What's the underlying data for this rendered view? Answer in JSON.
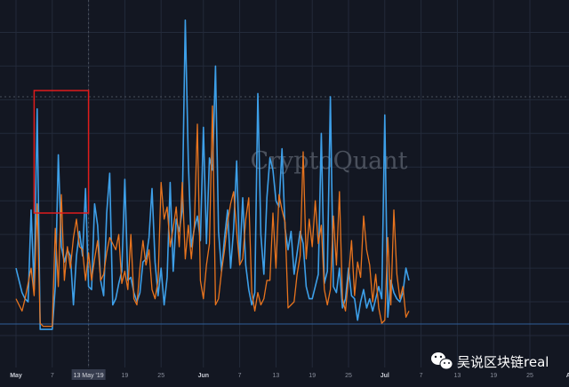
{
  "chart_data": {
    "type": "line",
    "watermark": "CryptoQuant",
    "credit": "吴说区块链real",
    "credit_icon": "wechat-icon",
    "crosshair_label": "13 May '19",
    "x_ticks": [
      "May",
      "7",
      "13 May '19",
      "19",
      "25",
      "Jun",
      "7",
      "13",
      "19",
      "25",
      "Jul",
      "7",
      "13",
      "19",
      "25",
      "Aug"
    ],
    "x_tick_days": [
      0,
      6,
      12,
      18,
      24,
      31,
      37,
      43,
      49,
      55,
      61,
      67,
      73,
      79,
      85,
      92
    ],
    "bold_ticks": [
      "May",
      "Jun",
      "Jul",
      "Aug"
    ],
    "ylim": [
      0,
      100
    ],
    "grid": true,
    "colors": {
      "background": "#131722",
      "grid": "#232a3a",
      "blue_series": "#3d9fe8",
      "orange_series": "#e8741e",
      "highlight_box": "#e01c1c",
      "baseline": "#2f5f9a"
    },
    "highlight": {
      "x_start": 3,
      "x_end": 12,
      "y_low": 40,
      "y_high": 80
    },
    "series": [
      {
        "color": "#3d9fe8",
        "values": [
          22,
          18,
          14,
          12,
          11,
          41,
          15,
          74,
          2,
          2,
          2,
          2,
          2,
          16,
          59,
          29,
          24,
          28,
          26,
          10,
          26,
          34,
          26,
          48,
          16,
          15,
          43,
          36,
          18,
          13,
          40,
          53,
          10,
          12,
          17,
          21,
          51,
          18,
          19,
          14,
          11,
          14,
          24,
          25,
          32,
          48,
          24,
          13,
          22,
          10,
          19,
          50,
          21,
          38,
          34,
          41,
          103,
          57,
          29,
          35,
          39,
          31,
          68,
          30,
          58,
          54,
          88,
          34,
          21,
          32,
          41,
          22,
          35,
          57,
          24,
          45,
          23,
          15,
          10,
          14,
          79,
          33,
          20,
          45,
          58,
          54,
          44,
          42,
          61,
          35,
          28,
          34,
          20,
          27,
          34,
          30,
          16,
          12,
          12,
          16,
          20,
          66,
          17,
          21,
          78,
          16,
          14,
          22,
          9,
          12,
          22,
          13,
          12,
          5,
          11,
          15,
          9,
          12,
          8,
          12,
          16,
          12,
          72,
          6,
          18,
          14,
          12,
          11,
          14,
          22,
          18
        ],
        "x": [
          0,
          0.5,
          1,
          1.5,
          2,
          2.5,
          3,
          3.5,
          4,
          4.5,
          5,
          5.5,
          6,
          6.5,
          7,
          7.5,
          8,
          8.5,
          9,
          9.5,
          10,
          10.5,
          11,
          11.5,
          12,
          12.5,
          13,
          13.5,
          14,
          14.5,
          15,
          15.5,
          16,
          16.5,
          17,
          17.5,
          18,
          18.5,
          19,
          19.5,
          20,
          20.5,
          21,
          21.5,
          22,
          22.5,
          23,
          23.5,
          24,
          24.5,
          25,
          25.5,
          26,
          26.5,
          27,
          27.5,
          28,
          28.5,
          29,
          29.5,
          30,
          30.5,
          31,
          31.5,
          32,
          32.5,
          33,
          33.5,
          34,
          34.5,
          35,
          35.5,
          36,
          36.5,
          37,
          37.5,
          38,
          38.5,
          39,
          39.5,
          40,
          40.5,
          41,
          41.5,
          42,
          42.5,
          43,
          43.5,
          44,
          44.5,
          45,
          45.5,
          46,
          46.5,
          47,
          47.5,
          48,
          48.5,
          49,
          49.5,
          50,
          50.5,
          51,
          51.5,
          52,
          52.5,
          53,
          53.5,
          54,
          54.5,
          55,
          55.5,
          56,
          56.5,
          57,
          57.5,
          58,
          58.5,
          59,
          59.5,
          60,
          60.5,
          61,
          61.5,
          62,
          62.5,
          63,
          63.5,
          64,
          64.5,
          65
        ]
      },
      {
        "color": "#e8741e",
        "values": [
          12,
          10,
          8,
          12,
          17,
          22,
          13,
          43,
          4,
          3,
          3,
          3,
          3,
          35,
          16,
          46,
          18,
          29,
          22,
          32,
          38,
          29,
          28,
          18,
          27,
          18,
          25,
          31,
          18,
          20,
          27,
          32,
          30,
          28,
          33,
          17,
          21,
          15,
          33,
          12,
          10,
          22,
          31,
          23,
          28,
          15,
          12,
          18,
          50,
          38,
          42,
          29,
          35,
          42,
          29,
          50,
          25,
          36,
          25,
          36,
          69,
          18,
          12,
          23,
          30,
          75,
          10,
          12,
          21,
          28,
          37,
          43,
          47,
          34,
          23,
          25,
          38,
          45,
          14,
          8,
          14,
          10,
          12,
          18,
          18,
          40,
          22,
          46,
          41,
          37,
          9,
          10,
          11,
          20,
          26,
          60,
          25,
          38,
          29,
          44,
          30,
          36,
          15,
          10,
          15,
          39,
          23,
          47,
          12,
          8,
          19,
          31,
          13,
          24,
          19,
          39,
          28,
          23,
          11,
          20,
          9,
          4,
          5,
          32,
          10,
          41,
          20,
          12,
          16,
          6,
          8
        ],
        "x": [
          0,
          0.5,
          1,
          1.5,
          2,
          2.5,
          3,
          3.5,
          4,
          4.5,
          5,
          5.5,
          6,
          6.5,
          7,
          7.5,
          8,
          8.5,
          9,
          9.5,
          10,
          10.5,
          11,
          11.5,
          12,
          12.5,
          13,
          13.5,
          14,
          14.5,
          15,
          15.5,
          16,
          16.5,
          17,
          17.5,
          18,
          18.5,
          19,
          19.5,
          20,
          20.5,
          21,
          21.5,
          22,
          22.5,
          23,
          23.5,
          24,
          24.5,
          25,
          25.5,
          26,
          26.5,
          27,
          27.5,
          28,
          28.5,
          29,
          29.5,
          30,
          30.5,
          31,
          31.5,
          32,
          32.5,
          33,
          33.5,
          34,
          34.5,
          35,
          35.5,
          36,
          36.5,
          37,
          37.5,
          38,
          38.5,
          39,
          39.5,
          40,
          40.5,
          41,
          41.5,
          42,
          42.5,
          43,
          43.5,
          44,
          44.5,
          45,
          45.5,
          46,
          46.5,
          47,
          47.5,
          48,
          48.5,
          49,
          49.5,
          50,
          50.5,
          51,
          51.5,
          52,
          52.5,
          53,
          53.5,
          54,
          54.5,
          55,
          55.5,
          56,
          56.5,
          57,
          57.5,
          58,
          58.5,
          59,
          59.5,
          60,
          60.5,
          61,
          61.5,
          62,
          62.5,
          63,
          63.5,
          64,
          64.5,
          65
        ]
      }
    ]
  }
}
